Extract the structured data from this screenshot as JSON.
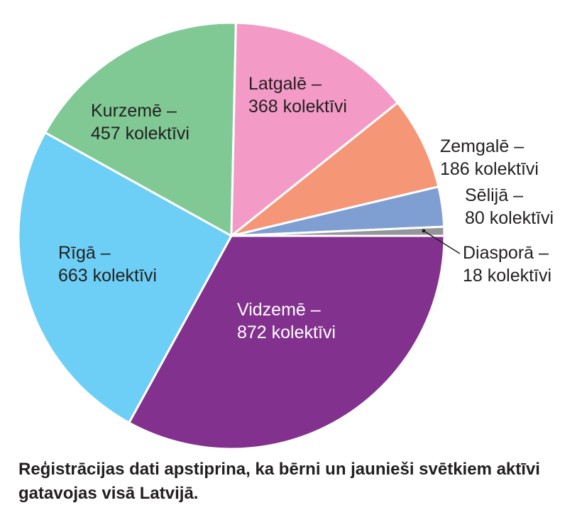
{
  "chart_data": {
    "type": "pie",
    "slices": [
      {
        "name": "Vidzemē",
        "value": 872,
        "color": "#83318e",
        "text_color": "#ffffff",
        "line1": "Vidzemē –",
        "line2": "872 kolektīvi"
      },
      {
        "name": "Rīgā",
        "value": 663,
        "color": "#6dcff6",
        "text_color": "#231f20",
        "line1": "Rīgā –",
        "line2": "663 kolektīvi"
      },
      {
        "name": "Kurzemē",
        "value": 457,
        "color": "#80c994",
        "text_color": "#231f20",
        "line1": "Kurzemē –",
        "line2": "457 kolektīvi"
      },
      {
        "name": "Latgalē",
        "value": 368,
        "color": "#f39ac7",
        "text_color": "#231f20",
        "line1": "Latgalē –",
        "line2": "368 kolektīvi"
      },
      {
        "name": "Zemgalē",
        "value": 186,
        "color": "#f59677",
        "text_color": "#231f20",
        "line1": "Zemgalē –",
        "line2": "186 kolektīvi"
      },
      {
        "name": "Sēlijā",
        "value": 80,
        "color": "#7f9fd3",
        "text_color": "#231f20",
        "line1": "Sēlijā –",
        "line2": "80 kolektīvi"
      },
      {
        "name": "Diasporā",
        "value": 18,
        "color": "#939598",
        "text_color": "#231f20",
        "line1": "Diasporā –",
        "line2": "18 kolektīvi"
      }
    ],
    "caption": "Reģistrācijas dati apstiprina, ka bērni un jaunieši svētkiem aktīvi gatavojas visā Latvijā."
  }
}
